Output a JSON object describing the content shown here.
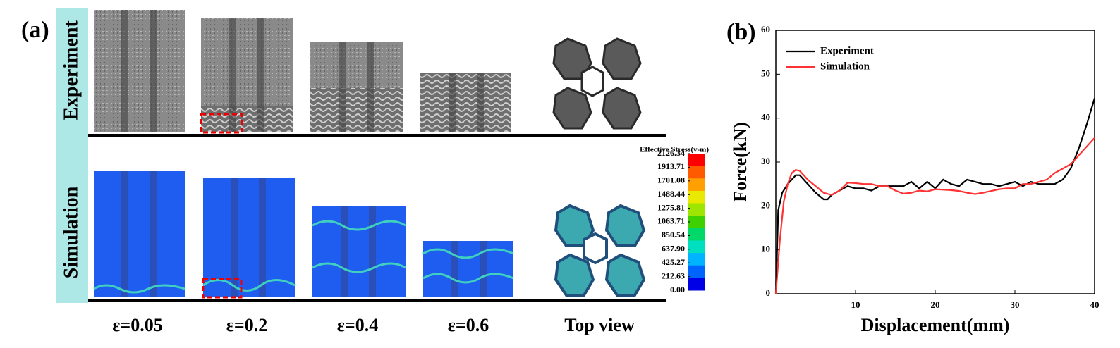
{
  "panel_a": {
    "label": "(a)",
    "rows": [
      "Experiment",
      "Simulation"
    ],
    "strains": [
      "ε=0.05",
      "ε=0.2",
      "ε=0.4",
      "ε=0.6"
    ],
    "top_view": "Top view",
    "colorbar": {
      "title": "Effective Stress(v-m)",
      "ticks": [
        2126.34,
        1913.71,
        1701.08,
        1488.44,
        1275.81,
        1063.71,
        850.54,
        {
          "value": 637.9,
          "label": "637.90"
        },
        425.27,
        212.63,
        {
          "value": 0,
          "label": "0.00"
        }
      ],
      "colors": [
        "#ff0000",
        "#ff5a00",
        "#ffa000",
        "#e8e800",
        "#9ee600",
        "#3fd000",
        "#00d86a",
        "#00e0c0",
        "#00b4ff",
        "#0064ff",
        "#0000e6"
      ]
    }
  },
  "chart_data": {
    "type": "line",
    "label": "(b)",
    "x_label": "Displacement(mm)",
    "y_label": "Force(kN)",
    "xlim": [
      0,
      40
    ],
    "ylim": [
      0,
      60
    ],
    "xticks": [
      10,
      20,
      30,
      40
    ],
    "yticks": [
      0,
      10,
      20,
      30,
      40,
      50,
      60
    ],
    "legend": "top-left",
    "series": [
      {
        "name": "Experiment",
        "color": "#000000",
        "x": [
          0,
          0.3,
          0.8,
          1.5,
          2.5,
          3,
          4,
          5,
          6,
          6.5,
          7,
          8,
          9,
          10,
          11,
          12,
          13,
          14,
          15,
          16,
          17,
          18,
          19,
          20,
          21,
          22,
          23,
          24,
          25,
          26,
          27,
          28,
          29,
          30,
          31,
          32,
          33,
          34,
          35,
          36,
          37,
          38,
          39,
          40
        ],
        "values": [
          0,
          19,
          23,
          25,
          27,
          27,
          25,
          23,
          21.5,
          21.5,
          22.5,
          23.5,
          24.5,
          24,
          24,
          23.5,
          24.5,
          24.5,
          24.5,
          24.5,
          25.5,
          24,
          25.5,
          24,
          26,
          25,
          24.5,
          26,
          25.5,
          25,
          25,
          24.5,
          25,
          25.5,
          24.5,
          25.5,
          25,
          25,
          25,
          26,
          28.5,
          33,
          38.5,
          44.5
        ]
      },
      {
        "name": "Simulation",
        "color": "#ff3333",
        "x": [
          0,
          0.5,
          1,
          1.5,
          2,
          2.5,
          3,
          4,
          5,
          6,
          7,
          8,
          9,
          10,
          11,
          12,
          13,
          14,
          15,
          16,
          17,
          18,
          19,
          20,
          21,
          22,
          23,
          24,
          25,
          26,
          27,
          28,
          29,
          30,
          31,
          32,
          33,
          34,
          35,
          36,
          37,
          38,
          39,
          40
        ],
        "values": [
          0,
          12,
          21,
          25,
          27.5,
          28.2,
          28,
          26,
          24.5,
          23,
          22.5,
          23.5,
          25.3,
          25.2,
          25,
          25,
          24.5,
          24.5,
          23.5,
          22.8,
          23,
          23.5,
          23.3,
          23.8,
          23.7,
          23.6,
          23.4,
          23,
          22.7,
          23,
          23.4,
          23.8,
          24,
          24,
          25,
          25,
          25.5,
          26,
          27.5,
          28.5,
          29.5,
          31.5,
          33.5,
          35.5
        ]
      }
    ]
  }
}
